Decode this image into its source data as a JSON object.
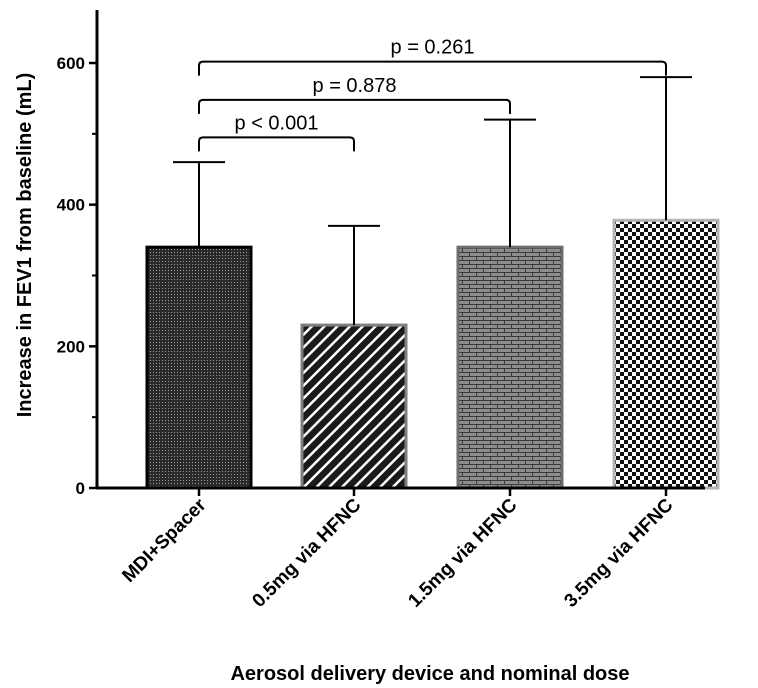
{
  "chart_data": {
    "type": "bar",
    "categories": [
      "MDI+Spacer",
      "0.5mg via HFNC",
      "1.5mg via HFNC",
      "3.5mg via HFNC"
    ],
    "values": [
      340,
      230,
      340,
      378
    ],
    "error_upper": [
      460,
      370,
      520,
      580
    ],
    "xlabel": "Aerosol delivery device and nominal dose",
    "ylabel": "Increase in FEV1 from baseline (mL)",
    "ylim": [
      0,
      670
    ],
    "yticks": [
      0,
      200,
      400,
      600
    ],
    "grid": false,
    "legend": "none",
    "comparisons": [
      {
        "from": 0,
        "to": 1,
        "label": "p < 0.001",
        "level": 495
      },
      {
        "from": 0,
        "to": 2,
        "label": "p = 0.878",
        "level": 548
      },
      {
        "from": 0,
        "to": 3,
        "label": "p = 0.261",
        "level": 602
      }
    ],
    "bar_fills": [
      "dots-fine",
      "diagonal-hatch",
      "brick",
      "checker"
    ],
    "bar_borders": [
      "#000000",
      "#7f7f7f",
      "#6e6e6e",
      "#b4b4b4"
    ]
  }
}
